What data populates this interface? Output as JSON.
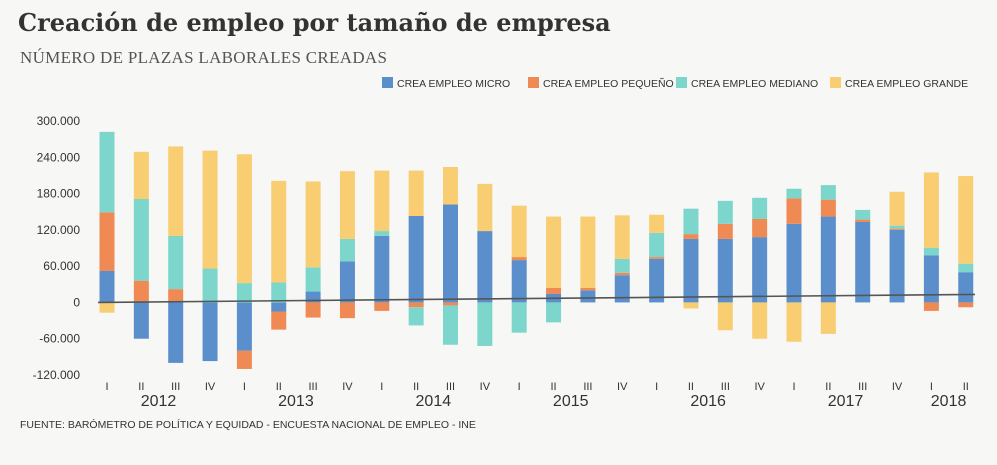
{
  "title": "Creación de empleo por tamaño de empresa",
  "subtitle": "NÚMERO DE PLAZAS LABORALES CREADAS",
  "source": "FUENTE: BARÓMETRO DE POLÍTICA Y EQUIDAD - ENCUESTA NACIONAL DE EMPLEO - INE",
  "colors": {
    "micro": "#5b8fcc",
    "pequeno": "#ef8a55",
    "mediano": "#7dd6cb",
    "grande": "#f9cd72",
    "axis": "#555555"
  },
  "chart_data": {
    "type": "bar",
    "stacked": true,
    "ylim": [
      -120000,
      300000
    ],
    "y_ticks": [
      -120000,
      -60000,
      0,
      60000,
      120000,
      180000,
      240000,
      300000
    ],
    "y_tick_labels": [
      "-120.000",
      "-60.000",
      "0",
      "60.000",
      "120.000",
      "180.000",
      "240.000",
      "300.000"
    ],
    "legend_position": "top-right",
    "categories": [
      "I",
      "II",
      "III",
      "IV",
      "I",
      "II",
      "III",
      "IV",
      "I",
      "II",
      "III",
      "IV",
      "I",
      "II",
      "III",
      "IV",
      "I",
      "II",
      "III",
      "IV",
      "I",
      "II",
      "III",
      "IV",
      "I",
      "II"
    ],
    "years": [
      {
        "label": "2012",
        "start": 0,
        "end": 3
      },
      {
        "label": "2013",
        "start": 4,
        "end": 7
      },
      {
        "label": "2014",
        "start": 8,
        "end": 11
      },
      {
        "label": "2015",
        "start": 12,
        "end": 15
      },
      {
        "label": "2016",
        "start": 16,
        "end": 19
      },
      {
        "label": "2017",
        "start": 20,
        "end": 23
      },
      {
        "label": "2018",
        "start": 24,
        "end": 25
      }
    ],
    "series": [
      {
        "key": "micro",
        "name": "CREA EMPLEO MICRO",
        "values": [
          52000,
          -60000,
          -100000,
          -97000,
          -80000,
          -15000,
          18000,
          68000,
          110000,
          143000,
          162000,
          118000,
          70000,
          14000,
          20000,
          45000,
          72000,
          105000,
          105000,
          108000,
          130000,
          142000,
          133000,
          120000,
          78000,
          50000
        ]
      },
      {
        "key": "pequeno",
        "name": "CREA EMPLEO PEQUEÑO",
        "values": [
          97000,
          36000,
          22000,
          0,
          -30000,
          -30000,
          -25000,
          -26000,
          -14000,
          -8000,
          -5000,
          0,
          5000,
          10000,
          4000,
          4000,
          3000,
          8000,
          25000,
          30000,
          42000,
          28000,
          4000,
          2000,
          -14000,
          -8000
        ]
      },
      {
        "key": "mediano",
        "name": "CREA EMPLEO MEDIANO",
        "values": [
          133000,
          135000,
          88000,
          56000,
          32000,
          33000,
          40000,
          37000,
          8000,
          -30000,
          -65000,
          -72000,
          -50000,
          -33000,
          0,
          23000,
          40000,
          42000,
          38000,
          35000,
          16000,
          24000,
          16000,
          5000,
          12000,
          14000
        ]
      },
      {
        "key": "grande",
        "name": "CREA EMPLEO GRANDE",
        "values": [
          -17000,
          78000,
          148000,
          195000,
          213000,
          168000,
          142000,
          112000,
          100000,
          75000,
          62000,
          78000,
          85000,
          118000,
          118000,
          72000,
          30000,
          -10000,
          -46000,
          -60000,
          -65000,
          -52000,
          0,
          56000,
          125000,
          145000
        ]
      }
    ]
  }
}
